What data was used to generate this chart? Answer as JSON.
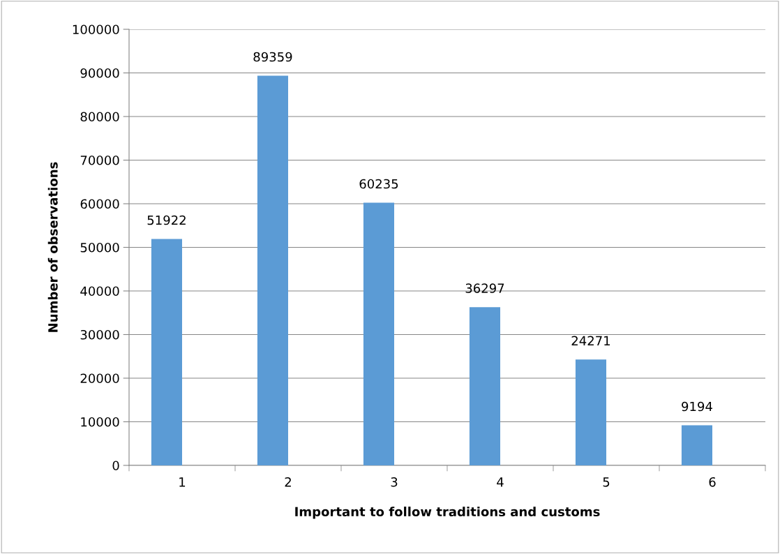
{
  "chart_data": {
    "type": "bar",
    "xlabel": "Important to follow traditions and customs",
    "ylabel": "Number of observations",
    "categories": [
      "1",
      "2",
      "3",
      "4",
      "5",
      "6"
    ],
    "values": [
      51922,
      89359,
      60235,
      36297,
      24271,
      9194
    ],
    "color": "#5b9bd5",
    "ylim": [
      0,
      100000
    ],
    "yticks": [
      0,
      10000,
      20000,
      30000,
      40000,
      50000,
      60000,
      70000,
      80000,
      90000,
      100000
    ],
    "grid": "y",
    "data_labels": true,
    "legend": false
  }
}
